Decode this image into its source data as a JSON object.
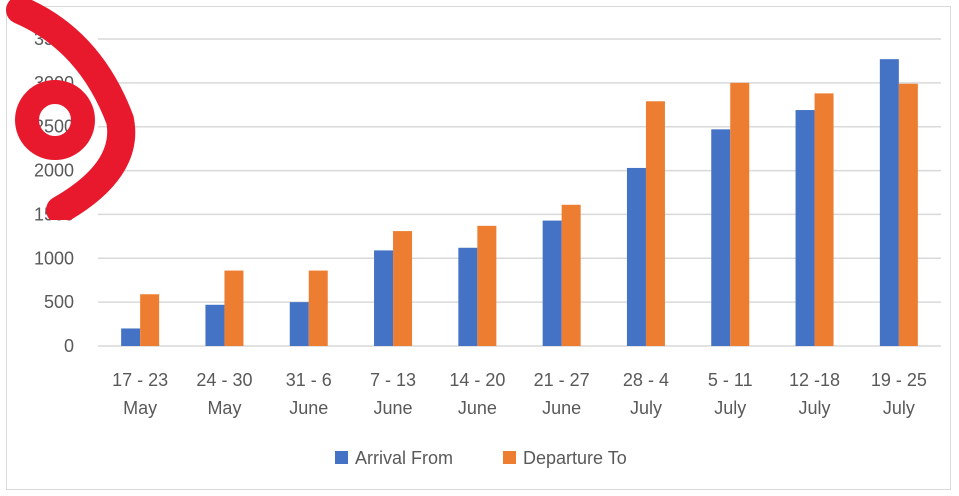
{
  "chart_data": {
    "type": "bar",
    "categories": [
      [
        "17 - 23",
        "May"
      ],
      [
        "24 - 30",
        "May"
      ],
      [
        "31 - 6",
        "June"
      ],
      [
        "7 - 13",
        "June"
      ],
      [
        "14 - 20",
        "June"
      ],
      [
        "21 - 27",
        "June"
      ],
      [
        "28 - 4",
        "July"
      ],
      [
        "5 - 11",
        "July"
      ],
      [
        "12 -18",
        "July"
      ],
      [
        "19 - 25",
        "July"
      ]
    ],
    "series": [
      {
        "name": "Arrival From",
        "color": "#4472C4",
        "values": [
          200,
          470,
          500,
          1090,
          1120,
          1430,
          2030,
          2470,
          2690,
          3270
        ]
      },
      {
        "name": "Departure To",
        "color": "#ED7D31",
        "values": [
          590,
          860,
          860,
          1310,
          1370,
          1610,
          2790,
          3000,
          2880,
          2990
        ]
      }
    ],
    "y_ticks": [
      "0",
      "500",
      "1000",
      "1500",
      "2000",
      "2500",
      "3000",
      "3500"
    ],
    "ylim": [
      0,
      3500
    ],
    "grid": true,
    "legend_position": "bottom",
    "title": "",
    "xlabel": "",
    "ylabel": ""
  },
  "colors": {
    "gridline": "#d9d9d9",
    "text": "#595959",
    "watermark": "#e8192c"
  }
}
